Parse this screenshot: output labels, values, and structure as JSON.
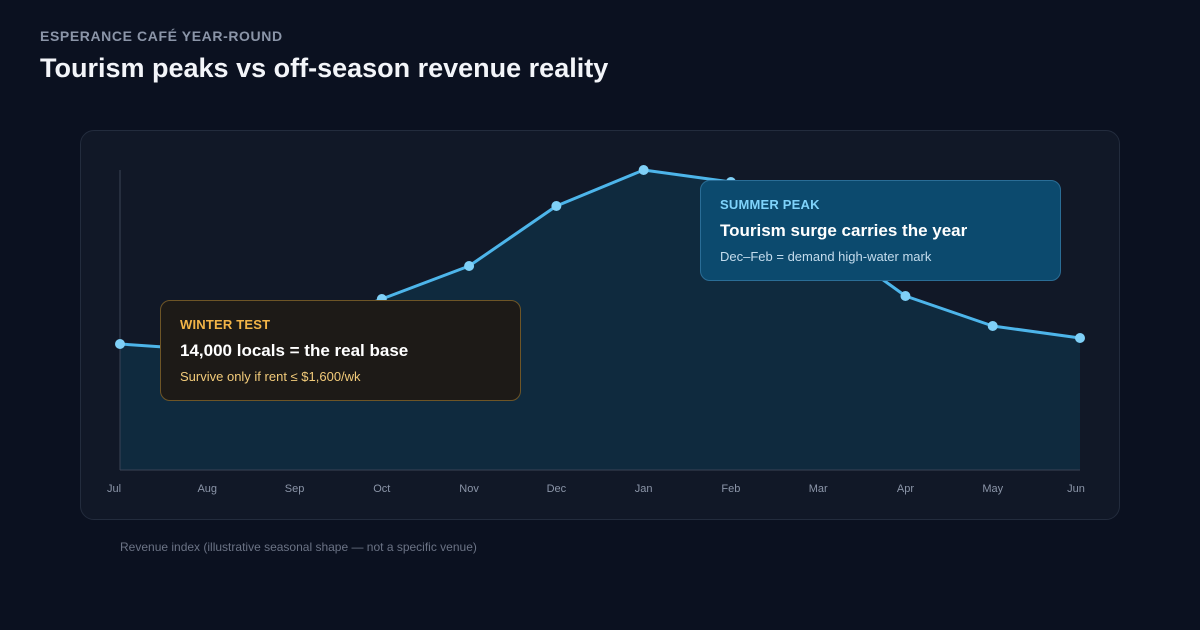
{
  "header": {
    "eyebrow": "ESPERANCE CAFÉ YEAR-ROUND",
    "title": "Tourism peaks vs off-season revenue reality"
  },
  "callouts": {
    "winter": {
      "tag": "WINTER TEST",
      "headline": "14,000 locals = the real base",
      "detail": "Survive only if rent ≤ $1,600/wk"
    },
    "summer": {
      "tag": "SUMMER PEAK",
      "headline": "Tourism surge carries the year",
      "detail": "Dec–Feb = demand high-water mark"
    }
  },
  "footnote": "Revenue index (illustrative seasonal shape — not a specific venue)",
  "colors": {
    "line": "#4db5ea",
    "marker": "#7fd0f7",
    "area": "#0f2a3e",
    "axis": "#3a4356"
  },
  "chart_data": {
    "type": "area",
    "categories": [
      "Jul",
      "Aug",
      "Sep",
      "Oct",
      "Nov",
      "Dec",
      "Jan",
      "Feb",
      "Mar",
      "Apr",
      "May",
      "Jun"
    ],
    "series": [
      {
        "values": [
          42,
          40,
          46,
          57,
          68,
          88,
          100,
          96,
          79,
          58,
          48,
          44
        ]
      }
    ],
    "ylim": [
      0,
      100
    ],
    "xlabel": "",
    "ylabel": "",
    "grid": false,
    "markers": true
  }
}
